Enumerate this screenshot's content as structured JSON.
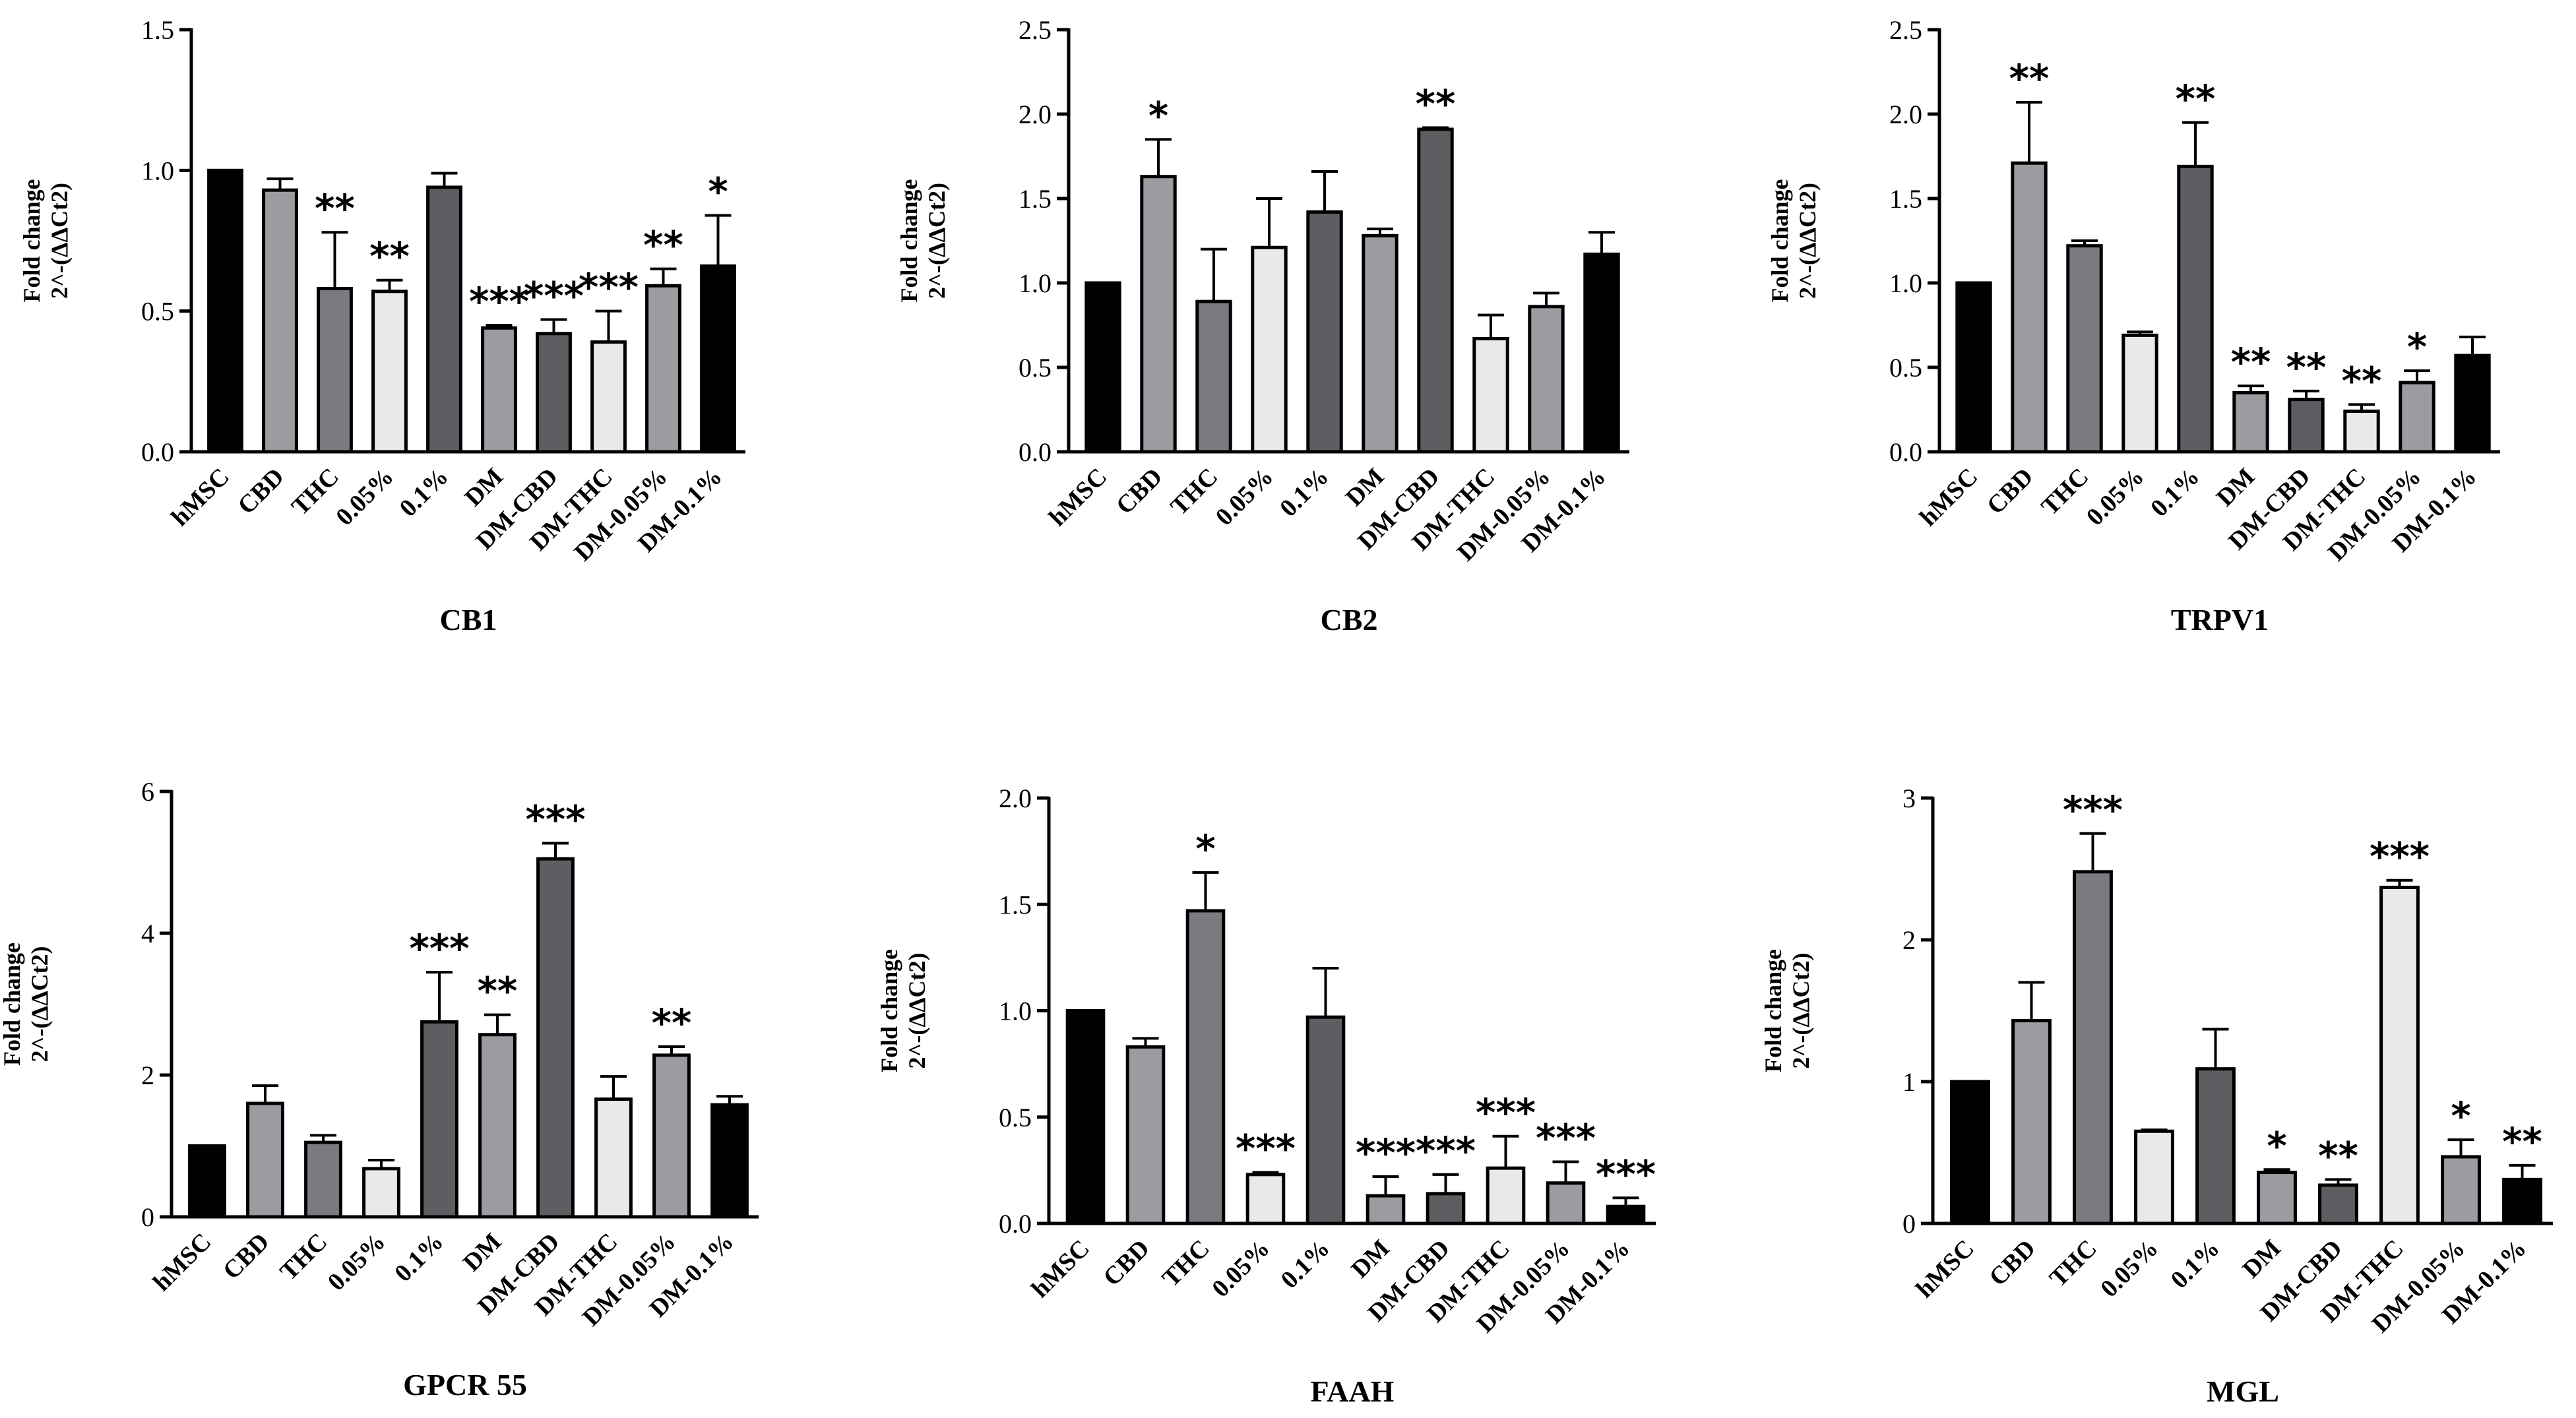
{
  "ylabel_line1": "Fold change",
  "ylabel_line2": "2^-(ΔΔCt2)",
  "colors": {
    "hMSC": "#000000",
    "CBD": "#9b9ba1",
    "THC": "#7a7a80",
    "0.05%": "#e9e9ec",
    "0.1%": "#5e5e62",
    "DM": "#9b9ba1",
    "DM-CBD": "#5e5e62",
    "DM-THC": "#e9e9ec",
    "DM-0.05%": "#9b9ba1",
    "DM-0.1%": "#000000"
  },
  "chart_data": [
    {
      "type": "bar",
      "title": "CB1",
      "categories": [
        "hMSC",
        "CBD",
        "THC",
        "0.05%",
        "0.1%",
        "DM",
        "DM-CBD",
        "DM-THC",
        "DM-0.05%",
        "DM-0.1%"
      ],
      "values": [
        1.0,
        0.93,
        0.58,
        0.57,
        0.94,
        0.44,
        0.42,
        0.39,
        0.59,
        0.66
      ],
      "errors": [
        0,
        0.04,
        0.2,
        0.04,
        0.05,
        0.01,
        0.05,
        0.11,
        0.06,
        0.18
      ],
      "significance": [
        "",
        "",
        "**",
        "**",
        "",
        "***",
        "***",
        "***",
        "**",
        "*"
      ],
      "ylim": [
        0,
        1.5
      ],
      "yticks": [
        "0.0",
        "0.5",
        "1.0",
        "1.5"
      ],
      "ytick_values": [
        0,
        0.5,
        1.0,
        1.5
      ]
    },
    {
      "type": "bar",
      "title": "CB2",
      "categories": [
        "hMSC",
        "CBD",
        "THC",
        "0.05%",
        "0.1%",
        "DM",
        "DM-CBD",
        "DM-THC",
        "DM-0.05%",
        "DM-0.1%"
      ],
      "values": [
        1.0,
        1.63,
        0.89,
        1.21,
        1.42,
        1.28,
        1.91,
        0.67,
        0.86,
        1.17
      ],
      "errors": [
        0,
        0.22,
        0.31,
        0.29,
        0.24,
        0.04,
        0.01,
        0.14,
        0.08,
        0.13
      ],
      "significance": [
        "",
        "*",
        "",
        "",
        "",
        "",
        "**",
        "",
        "",
        ""
      ],
      "ylim": [
        0,
        2.5
      ],
      "yticks": [
        "0.0",
        "0.5",
        "1.0",
        "1.5",
        "2.0",
        "2.5"
      ],
      "ytick_values": [
        0,
        0.5,
        1.0,
        1.5,
        2.0,
        2.5
      ]
    },
    {
      "type": "bar",
      "title": "TRPV1",
      "categories": [
        "hMSC",
        "CBD",
        "THC",
        "0.05%",
        "0.1%",
        "DM",
        "DM-CBD",
        "DM-THC",
        "DM-0.05%",
        "DM-0.1%"
      ],
      "values": [
        1.0,
        1.71,
        1.22,
        0.69,
        1.69,
        0.35,
        0.31,
        0.24,
        0.41,
        0.57
      ],
      "errors": [
        0,
        0.36,
        0.03,
        0.02,
        0.26,
        0.04,
        0.05,
        0.04,
        0.07,
        0.11
      ],
      "significance": [
        "",
        "**",
        "",
        "",
        "**",
        "**",
        "**",
        "**",
        "*",
        ""
      ],
      "ylim": [
        0,
        2.5
      ],
      "yticks": [
        "0.0",
        "0.5",
        "1.0",
        "1.5",
        "2.0",
        "2.5"
      ],
      "ytick_values": [
        0,
        0.5,
        1.0,
        1.5,
        2.0,
        2.5
      ]
    },
    {
      "type": "bar",
      "title": "GPCR 55",
      "categories": [
        "hMSC",
        "CBD",
        "THC",
        "0.05%",
        "0.1%",
        "DM",
        "DM-CBD",
        "DM-THC",
        "DM-0.05%",
        "DM-0.1%"
      ],
      "values": [
        1.0,
        1.6,
        1.05,
        0.68,
        2.75,
        2.57,
        5.05,
        1.66,
        2.28,
        1.58
      ],
      "errors": [
        0,
        0.25,
        0.1,
        0.12,
        0.7,
        0.28,
        0.22,
        0.32,
        0.12,
        0.12
      ],
      "significance": [
        "",
        "",
        "",
        "",
        "***",
        "**",
        "***",
        "",
        "**",
        ""
      ],
      "ylim": [
        0,
        6
      ],
      "yticks": [
        "0",
        "2",
        "4",
        "6"
      ],
      "ytick_values": [
        0,
        2,
        4,
        6
      ]
    },
    {
      "type": "bar",
      "title": "FAAH",
      "categories": [
        "hMSC",
        "CBD",
        "THC",
        "0.05%",
        "0.1%",
        "DM",
        "DM-CBD",
        "DM-THC",
        "DM-0.05%",
        "DM-0.1%"
      ],
      "values": [
        1.0,
        0.83,
        1.47,
        0.23,
        0.97,
        0.13,
        0.14,
        0.26,
        0.19,
        0.08
      ],
      "errors": [
        0,
        0.04,
        0.18,
        0.01,
        0.23,
        0.09,
        0.09,
        0.15,
        0.1,
        0.04
      ],
      "significance": [
        "",
        "",
        "*",
        "***",
        "",
        "***",
        "***",
        "***",
        "***",
        "***"
      ],
      "ylim": [
        0,
        2.0
      ],
      "yticks": [
        "0.0",
        "0.5",
        "1.0",
        "1.5",
        "2.0"
      ],
      "ytick_values": [
        0,
        0.5,
        1.0,
        1.5,
        2.0
      ]
    },
    {
      "type": "bar",
      "title": "MGL",
      "categories": [
        "hMSC",
        "CBD",
        "THC",
        "0.05%",
        "0.1%",
        "DM",
        "DM-CBD",
        "DM-THC",
        "DM-0.05%",
        "DM-0.1%"
      ],
      "values": [
        1.0,
        1.43,
        2.48,
        0.65,
        1.09,
        0.36,
        0.27,
        2.37,
        0.47,
        0.31
      ],
      "errors": [
        0,
        0.27,
        0.27,
        0.01,
        0.28,
        0.02,
        0.04,
        0.05,
        0.12,
        0.1
      ],
      "significance": [
        "",
        "",
        "***",
        "",
        "",
        "*",
        "**",
        "***",
        "*",
        "**"
      ],
      "ylim": [
        0,
        3
      ],
      "yticks": [
        "0",
        "1",
        "2",
        "3"
      ],
      "ytick_values": [
        0,
        1,
        2,
        3
      ]
    }
  ]
}
